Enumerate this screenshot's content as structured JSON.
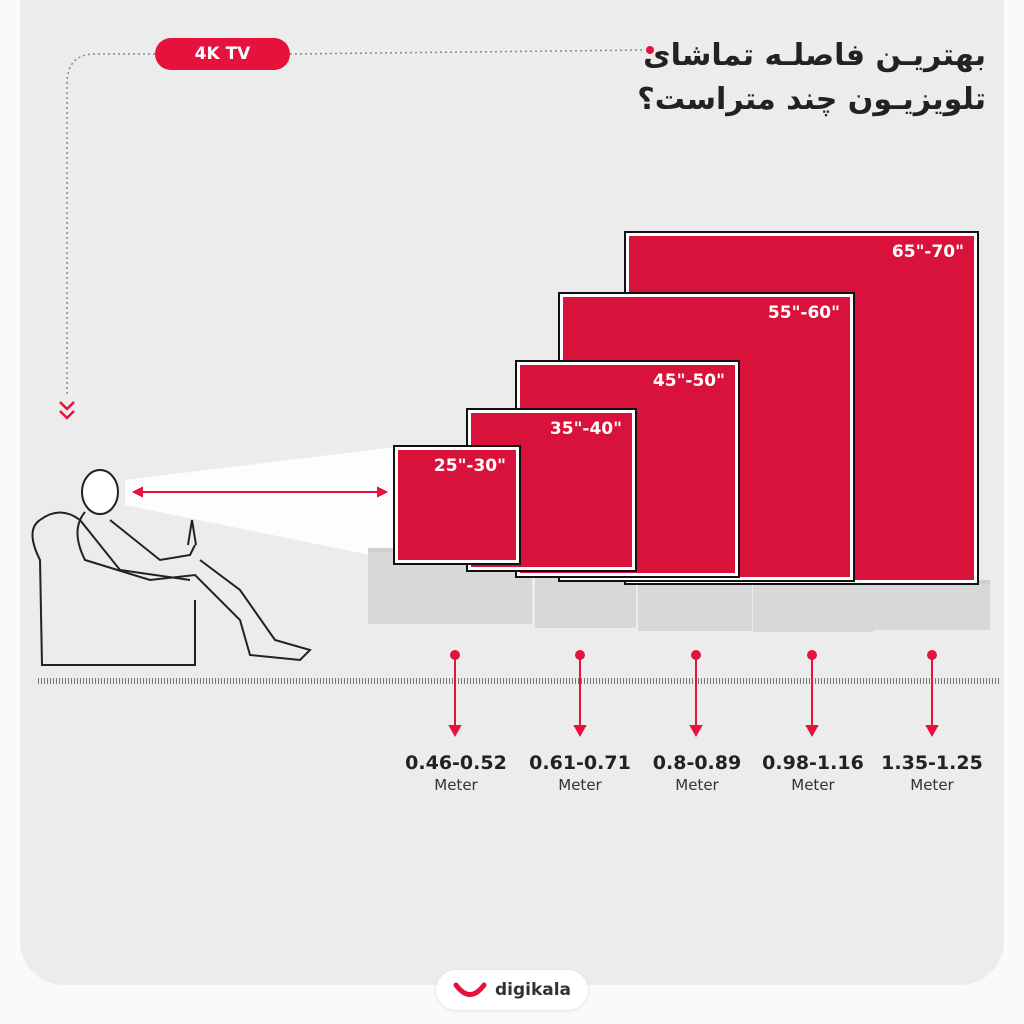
{
  "badge": "4K TV",
  "title": {
    "line1": "بهتریـن فاصلـه تماشای",
    "line2": "تلویزیـون چند متراست؟"
  },
  "accent_color": "#e6123d",
  "tvs": [
    {
      "size": "65\"-70\"",
      "distance": "1.35-1.25",
      "unit": "Meter"
    },
    {
      "size": "55\"-60\"",
      "distance": "0.98-1.16",
      "unit": "Meter"
    },
    {
      "size": "45\"-50\"",
      "distance": "0.8-0.89",
      "unit": "Meter"
    },
    {
      "size": "35\"-40\"",
      "distance": "0.61-0.71",
      "unit": "Meter"
    },
    {
      "size": "25\"-30\"",
      "distance": "0.46-0.52",
      "unit": "Meter"
    }
  ],
  "brand": "digikala"
}
